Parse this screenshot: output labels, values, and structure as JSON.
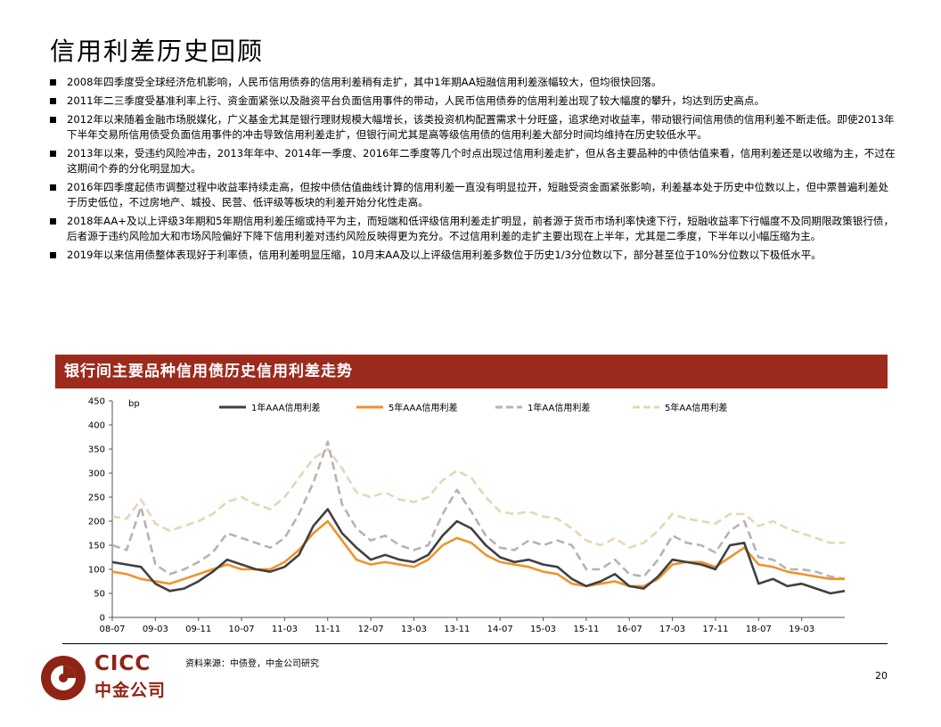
{
  "page": {
    "title": "信用利差历史回顾",
    "bullets": [
      "2008年四季度受全球经济危机影响，人民币信用债券的信用利差稍有走扩，其中1年期AA短融信用利差涨幅较大，但均很快回落。",
      "2011年二三季度受基准利率上行、资金面紧张以及融资平台负面信用事件的带动，人民币信用债券的信用利差出现了较大幅度的攀升，均达到历史高点。",
      "2012年以来随着金融市场脱媒化，广义基金尤其是银行理财规模大幅增长，该类投资机构配置需求十分旺盛，追求绝对收益率，带动银行间信用债的信用利差不断走低。即使2013年下半年交易所信用债受负面信用事件的冲击导致信用利差走扩，但银行间尤其是高等级信用债的信用利差大部分时间均维持在历史较低水平。",
      "2013年以来，受违约风险冲击，2013年年中、2014年一季度、2016年二季度等几个时点出现过信用利差走扩，但从各主要品种的中债估值来看，信用利差还是以收缩为主，不过在这期间个券的分化明显加大。",
      "2016年四季度起债市调整过程中收益率持续走高，但按中债估值曲线计算的信用利差一直没有明显拉开，短融受资金面紧张影响，利差基本处于历史中位数以上，但中票普遍利差处于历史低位，不过房地产、城投、民营、低评级等板块的利差开始分化性走高。",
      "2018年AA+及以上评级3年期和5年期信用利差压缩或持平为主，而短端和低评级信用利差走扩明显，前者源于货币市场利率快速下行，短融收益率下行幅度不及同期限政策银行债，后者源于违约风险加大和市场风险偏好下降下信用利差对违约风险反映得更为充分。不过信用利差的走扩主要出现在上半年，尤其是二季度，下半年以小幅压缩为主。",
      "2019年以来信用债整体表现好于利率债，信用利差明显压缩，10月末AA及以上评级信用利差多数位于历史1/3分位数以下，部分甚至位于10%分位数以下极低水平。"
    ],
    "banner": "银行间主要品种信用债历史信用利差走势",
    "source": "资料来源：中债登，中金公司研究",
    "page_number": "20",
    "logo_en": "CICC",
    "logo_cn": "中金公司"
  },
  "chart_data": {
    "type": "line",
    "ylabel": "bp",
    "ylim": [
      0,
      450
    ],
    "yticks": [
      0,
      50,
      100,
      150,
      200,
      250,
      300,
      350,
      400,
      450
    ],
    "x": [
      "08-07",
      "08-10",
      "09-01",
      "09-03",
      "09-06",
      "09-09",
      "09-11",
      "10-01",
      "10-04",
      "10-07",
      "10-10",
      "11-01",
      "11-03",
      "11-06",
      "11-08",
      "11-11",
      "12-01",
      "12-04",
      "12-07",
      "12-10",
      "13-01",
      "13-03",
      "13-06",
      "13-09",
      "13-11",
      "14-01",
      "14-04",
      "14-07",
      "14-10",
      "15-01",
      "15-03",
      "15-06",
      "15-09",
      "15-11",
      "16-01",
      "16-04",
      "16-07",
      "16-10",
      "17-01",
      "17-03",
      "17-06",
      "17-09",
      "17-11",
      "18-01",
      "18-04",
      "18-07",
      "18-10",
      "19-01",
      "19-03",
      "19-06",
      "19-09",
      "19-10"
    ],
    "xtick_labels": [
      "08-07",
      "09-03",
      "09-11",
      "10-07",
      "11-03",
      "11-11",
      "12-07",
      "13-03",
      "13-11",
      "14-07",
      "15-03",
      "15-11",
      "16-07",
      "17-03",
      "17-11",
      "18-07",
      "19-03"
    ],
    "series": [
      {
        "name": "1年AAA信用利差",
        "color": "#404040",
        "dash": "solid",
        "width": 2.6,
        "values": [
          115,
          110,
          105,
          70,
          55,
          60,
          75,
          95,
          120,
          110,
          100,
          95,
          105,
          130,
          190,
          225,
          175,
          145,
          120,
          130,
          120,
          115,
          130,
          170,
          200,
          185,
          150,
          125,
          115,
          120,
          110,
          105,
          80,
          65,
          75,
          90,
          65,
          60,
          85,
          120,
          115,
          110,
          100,
          150,
          155,
          70,
          80,
          65,
          70,
          60,
          50,
          55
        ]
      },
      {
        "name": "5年AAA信用利差",
        "color": "#f0922b",
        "dash": "solid",
        "width": 2.6,
        "values": [
          95,
          90,
          80,
          75,
          70,
          80,
          90,
          100,
          110,
          100,
          100,
          100,
          115,
          140,
          175,
          200,
          160,
          120,
          110,
          115,
          110,
          105,
          120,
          150,
          165,
          155,
          130,
          115,
          110,
          105,
          95,
          90,
          70,
          65,
          70,
          75,
          65,
          65,
          80,
          110,
          115,
          115,
          105,
          125,
          145,
          110,
          105,
          95,
          90,
          85,
          80,
          80
        ]
      },
      {
        "name": "1年AA信用利差",
        "color": "#b4b4b4",
        "dash": "dash",
        "width": 2.6,
        "values": [
          150,
          140,
          230,
          110,
          90,
          100,
          115,
          135,
          175,
          165,
          155,
          145,
          165,
          215,
          280,
          365,
          235,
          185,
          160,
          170,
          150,
          140,
          150,
          215,
          265,
          220,
          170,
          145,
          140,
          160,
          150,
          160,
          150,
          100,
          100,
          120,
          90,
          85,
          120,
          170,
          155,
          150,
          135,
          180,
          200,
          125,
          120,
          100,
          100,
          95,
          85,
          80
        ]
      },
      {
        "name": "5年AA信用利差",
        "color": "#e6d6b4",
        "dash": "dash",
        "width": 2.6,
        "values": [
          210,
          205,
          245,
          195,
          180,
          190,
          200,
          215,
          240,
          250,
          235,
          225,
          250,
          290,
          330,
          350,
          310,
          260,
          250,
          260,
          245,
          240,
          250,
          285,
          305,
          290,
          250,
          220,
          215,
          220,
          210,
          205,
          185,
          160,
          150,
          165,
          145,
          155,
          180,
          215,
          205,
          200,
          195,
          215,
          215,
          190,
          200,
          185,
          175,
          165,
          155,
          155
        ]
      }
    ],
    "legend_position": "top",
    "grid": false
  }
}
